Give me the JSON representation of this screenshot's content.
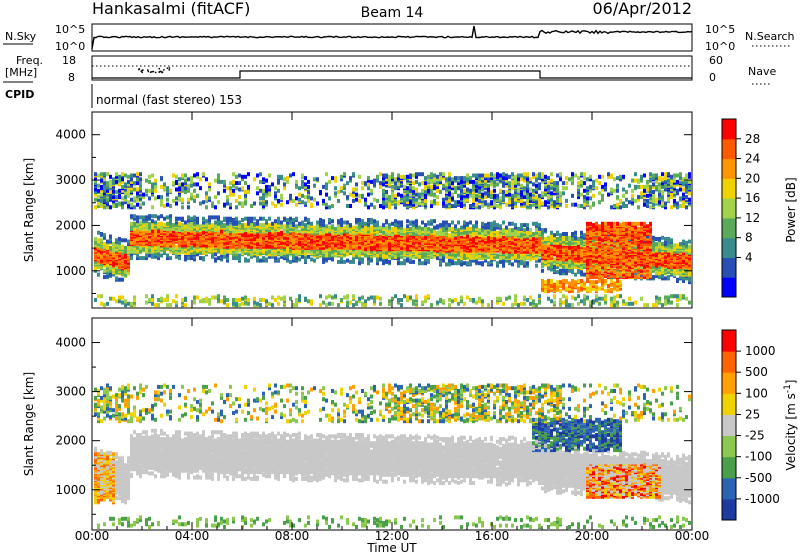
{
  "header": {
    "station": "Hankasalmi (fitACF)",
    "beam": "Beam 14",
    "date": "06/Apr/2012"
  },
  "top_panels": {
    "nsky_label": "N.Sky",
    "nsky_ticks": [
      "10^5",
      "10^0"
    ],
    "nsearch_label": "N.Search",
    "nsearch_ticks": [
      "10^5",
      "10^0"
    ],
    "freq_label": "Freq.",
    "freq_unit": "[MHz]",
    "freq_ticks": [
      "18",
      "8"
    ],
    "nave_label": "Nave",
    "nave_ticks": [
      "60",
      "0"
    ],
    "cpid_label": "CPID",
    "cpid_text": "normal (fast stereo) 153"
  },
  "chart_data": [
    {
      "type": "heatmap",
      "name": "power",
      "ylabel": "Slant Range [km]",
      "ylim": [
        180,
        4500
      ],
      "yticks": [
        "1000",
        "2000",
        "3000",
        "4000"
      ],
      "colorbar_label": "Power [dB]",
      "colorbar_ticks": [
        "28",
        "24",
        "20",
        "16",
        "12",
        "8",
        "4"
      ],
      "colors": [
        "#0000ff",
        "#2850b4",
        "#3a8c8c",
        "#5aaa5a",
        "#a0d24b",
        "#f0d200",
        "#ff9600",
        "#ff5a00",
        "#ff0000"
      ]
    },
    {
      "type": "heatmap",
      "name": "velocity",
      "ylabel": "Slant Range [km]",
      "ylim": [
        180,
        4500
      ],
      "yticks": [
        "1000",
        "2000",
        "3000",
        "4000"
      ],
      "colorbar_label": "Velocity [m s",
      "colorbar_label_sup": "-1",
      "colorbar_ticks": [
        "1000",
        "500",
        "100",
        "25",
        "-25",
        "-100",
        "-500",
        "-1000"
      ],
      "colors": [
        "#1e3ca0",
        "#2c64b4",
        "#4aa04a",
        "#8cc850",
        "#c8c8c8",
        "#f0d200",
        "#ffa000",
        "#ff6400",
        "#ff0000"
      ]
    }
  ],
  "x_axis": {
    "label": "Time UT",
    "ticks": [
      "00:00",
      "04:00",
      "08:00",
      "12:00",
      "16:00",
      "20:00",
      "00:00"
    ]
  }
}
